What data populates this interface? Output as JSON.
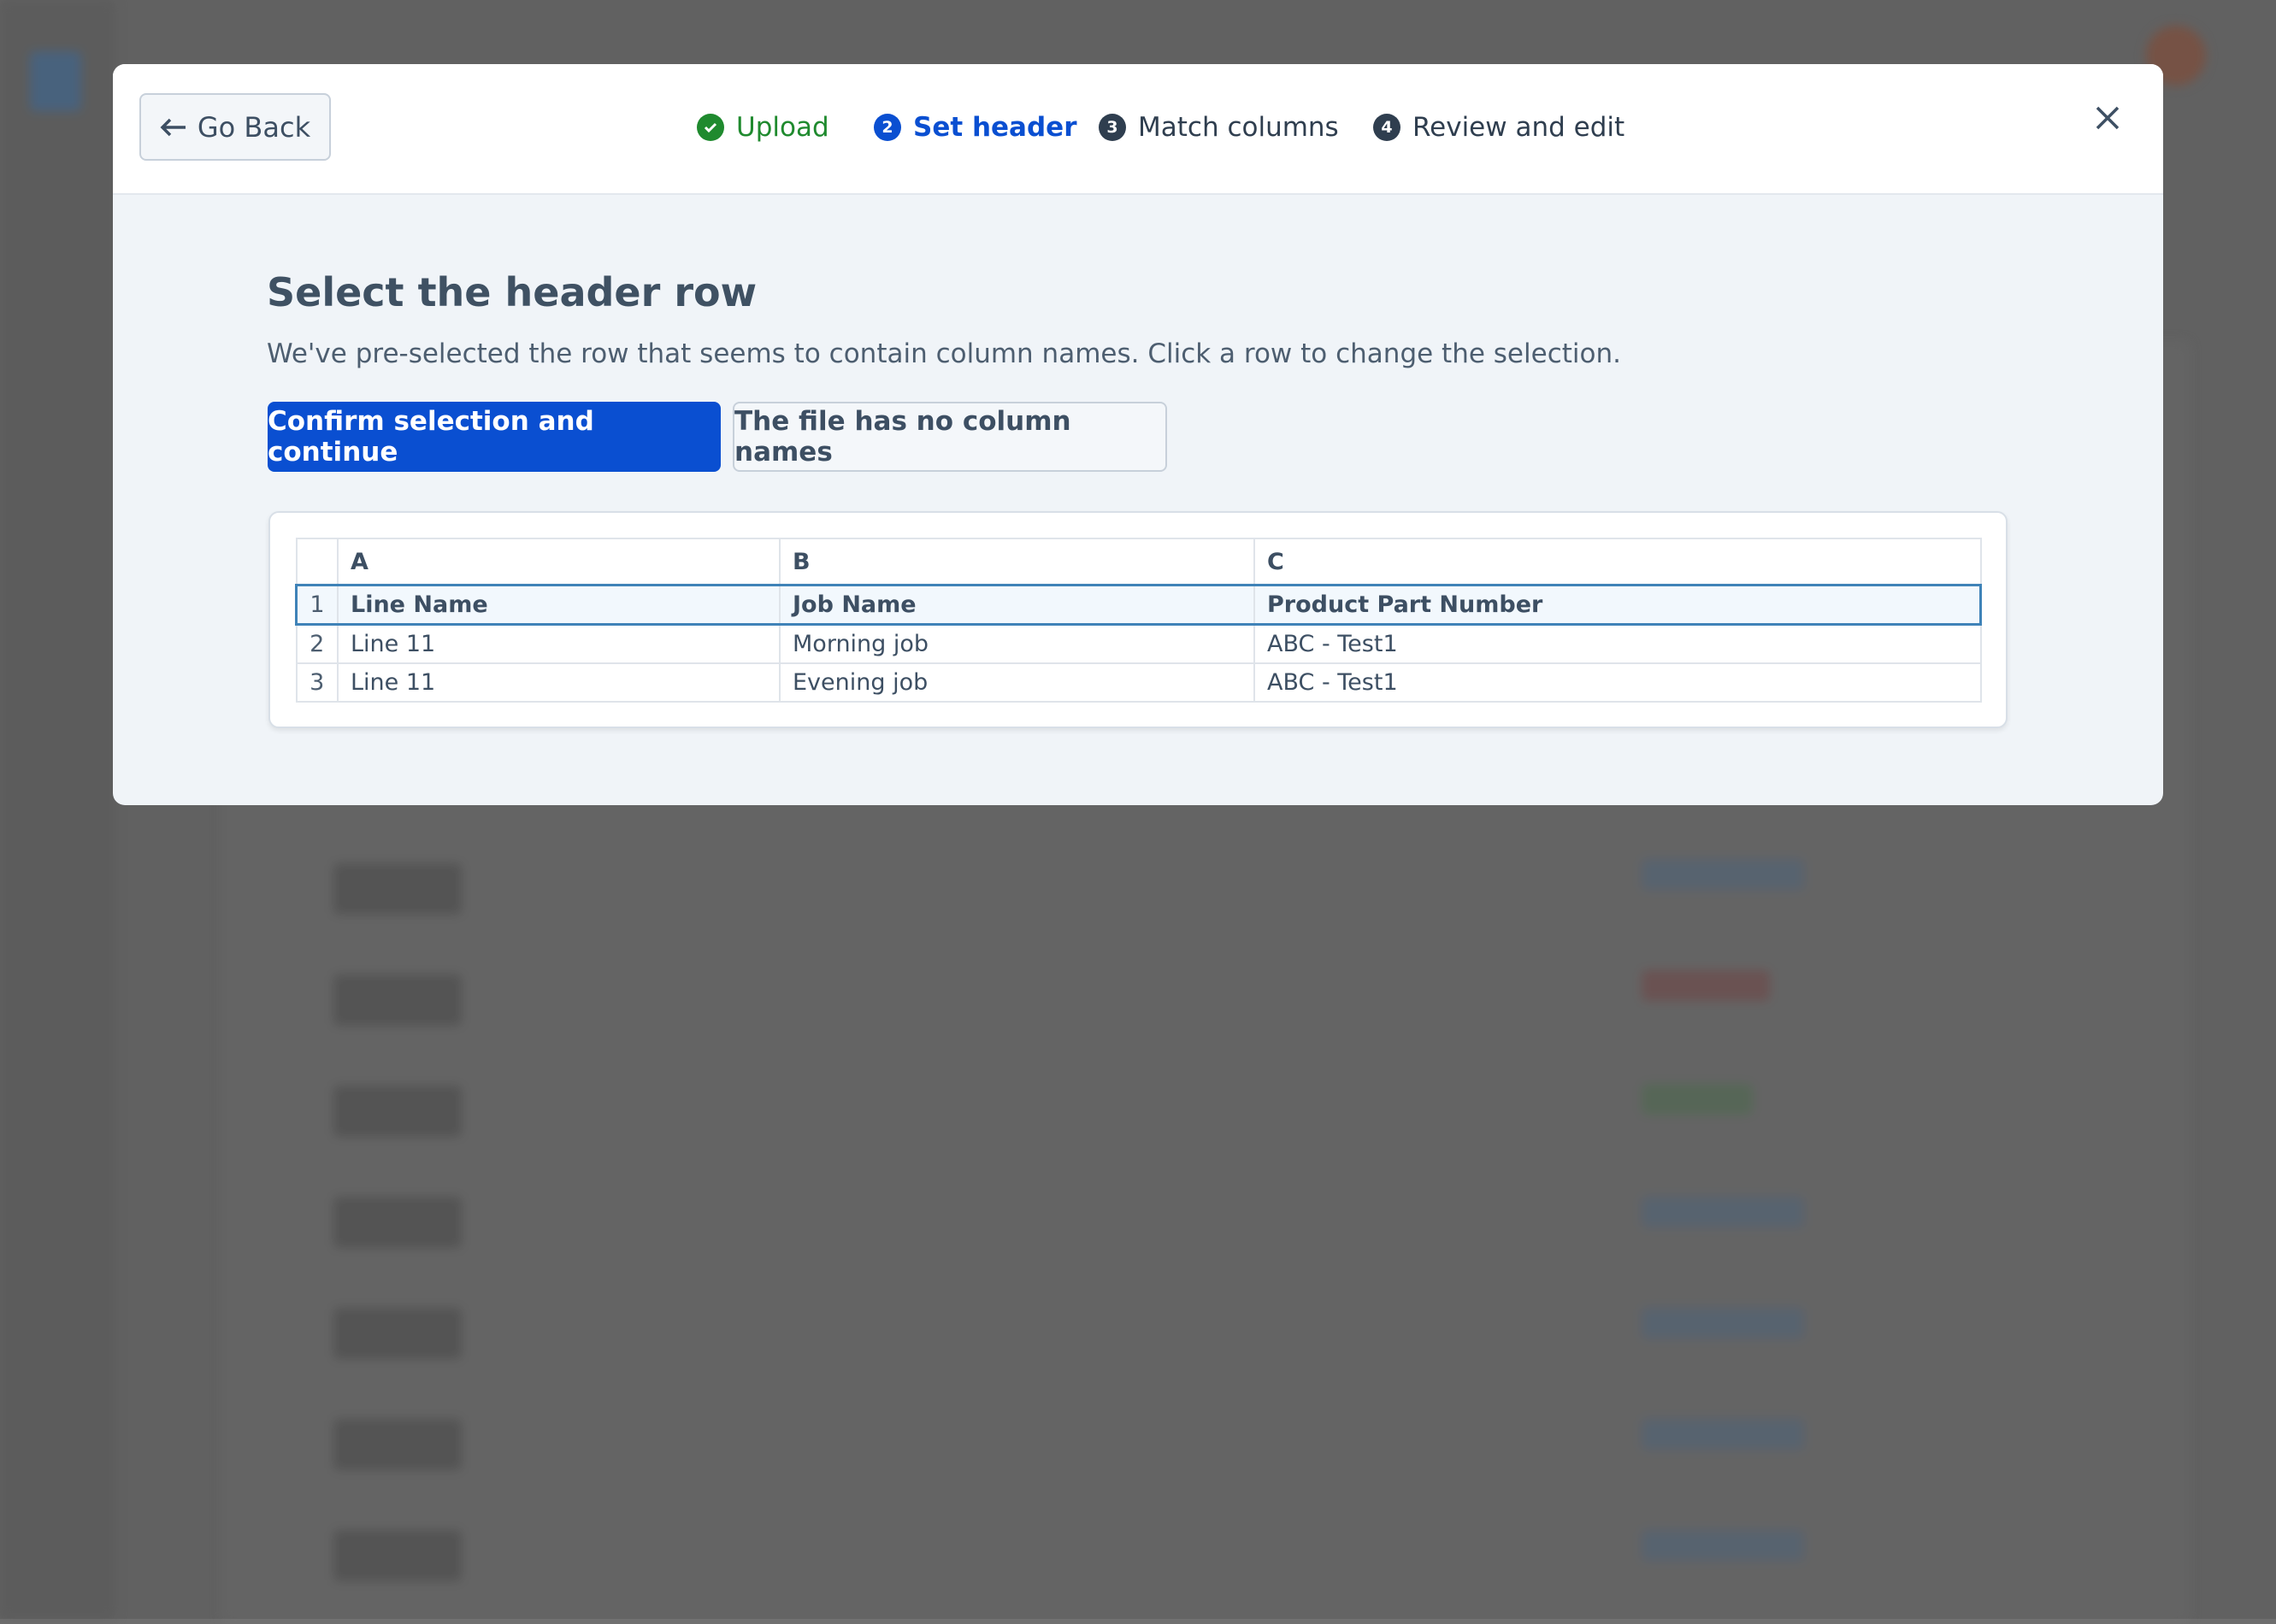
{
  "header": {
    "go_back": "Go Back",
    "steps": [
      {
        "label": "Upload",
        "status": "done"
      },
      {
        "number": 2,
        "label": "Set header",
        "status": "current"
      },
      {
        "number": 3,
        "label": "Match columns",
        "status": "todo"
      },
      {
        "number": 4,
        "label": "Review and edit",
        "status": "todo"
      }
    ]
  },
  "content": {
    "title": "Select the header row",
    "subtitle": "We've pre-selected the row that seems to contain column names. Click a row to change the selection.",
    "buttons": [
      "Confirm selection and continue",
      "The file has no column names"
    ]
  },
  "table": {
    "columns": [
      "A",
      "B",
      "C"
    ],
    "selected_row": 0,
    "rows": [
      {
        "index": 1,
        "cells": [
          "Line Name",
          "Job Name",
          "Product Part Number"
        ]
      },
      {
        "index": 2,
        "cells": [
          "Line 11",
          "Morning job",
          "ABC - Test1"
        ]
      },
      {
        "index": 3,
        "cells": [
          "Line 11",
          "Evening job",
          "ABC - Test1"
        ]
      }
    ]
  }
}
